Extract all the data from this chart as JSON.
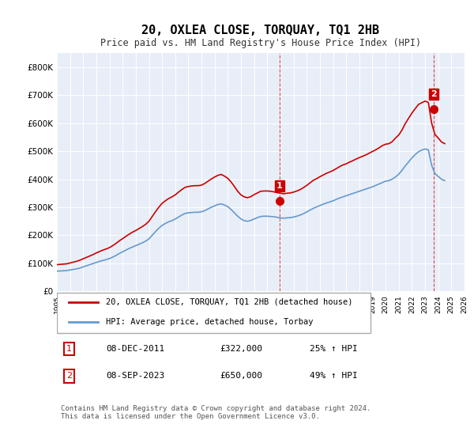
{
  "title": "20, OXLEA CLOSE, TORQUAY, TQ1 2HB",
  "subtitle": "Price paid vs. HM Land Registry's House Price Index (HPI)",
  "ylabel": "",
  "ylim": [
    0,
    850000
  ],
  "yticks": [
    0,
    100000,
    200000,
    300000,
    400000,
    500000,
    600000,
    700000,
    800000
  ],
  "ytick_labels": [
    "£0",
    "£100K",
    "£200K",
    "£300K",
    "£400K",
    "£500K",
    "£600K",
    "£700K",
    "£800K"
  ],
  "background_color": "#f0f4ff",
  "plot_bg": "#e8eef8",
  "red_color": "#cc0000",
  "blue_color": "#6699cc",
  "transaction1": {
    "date": 2011.92,
    "price": 322000,
    "label": "1"
  },
  "transaction2": {
    "date": 2023.67,
    "price": 650000,
    "label": "2"
  },
  "legend_red": "20, OXLEA CLOSE, TORQUAY, TQ1 2HB (detached house)",
  "legend_blue": "HPI: Average price, detached house, Torbay",
  "table_row1": [
    "1",
    "08-DEC-2011",
    "£322,000",
    "25% ↑ HPI"
  ],
  "table_row2": [
    "2",
    "08-SEP-2023",
    "£650,000",
    "49% ↑ HPI"
  ],
  "footer": "Contains HM Land Registry data © Crown copyright and database right 2024.\nThis data is licensed under the Open Government Licence v3.0.",
  "hpi_dates": [
    1995.0,
    1995.25,
    1995.5,
    1995.75,
    1996.0,
    1996.25,
    1996.5,
    1996.75,
    1997.0,
    1997.25,
    1997.5,
    1997.75,
    1998.0,
    1998.25,
    1998.5,
    1998.75,
    1999.0,
    1999.25,
    1999.5,
    1999.75,
    2000.0,
    2000.25,
    2000.5,
    2000.75,
    2001.0,
    2001.25,
    2001.5,
    2001.75,
    2002.0,
    2002.25,
    2002.5,
    2002.75,
    2003.0,
    2003.25,
    2003.5,
    2003.75,
    2004.0,
    2004.25,
    2004.5,
    2004.75,
    2005.0,
    2005.25,
    2005.5,
    2005.75,
    2006.0,
    2006.25,
    2006.5,
    2006.75,
    2007.0,
    2007.25,
    2007.5,
    2007.75,
    2008.0,
    2008.25,
    2008.5,
    2008.75,
    2009.0,
    2009.25,
    2009.5,
    2009.75,
    2010.0,
    2010.25,
    2010.5,
    2010.75,
    2011.0,
    2011.25,
    2011.5,
    2011.75,
    2012.0,
    2012.25,
    2012.5,
    2012.75,
    2013.0,
    2013.25,
    2013.5,
    2013.75,
    2014.0,
    2014.25,
    2014.5,
    2014.75,
    2015.0,
    2015.25,
    2015.5,
    2015.75,
    2016.0,
    2016.25,
    2016.5,
    2016.75,
    2017.0,
    2017.25,
    2017.5,
    2017.75,
    2018.0,
    2018.25,
    2018.5,
    2018.75,
    2019.0,
    2019.25,
    2019.5,
    2019.75,
    2020.0,
    2020.25,
    2020.5,
    2020.75,
    2021.0,
    2021.25,
    2021.5,
    2021.75,
    2022.0,
    2022.25,
    2022.5,
    2022.75,
    2023.0,
    2023.25,
    2023.5,
    2023.75,
    2024.0,
    2024.25,
    2024.5
  ],
  "hpi_values": [
    72000,
    72500,
    73000,
    74000,
    76000,
    78000,
    80000,
    83000,
    87000,
    91000,
    95000,
    99000,
    103000,
    107000,
    110000,
    113000,
    117000,
    122000,
    128000,
    135000,
    141000,
    147000,
    153000,
    158000,
    163000,
    168000,
    173000,
    179000,
    187000,
    200000,
    213000,
    225000,
    235000,
    242000,
    248000,
    252000,
    258000,
    265000,
    272000,
    278000,
    280000,
    281000,
    282000,
    282000,
    284000,
    288000,
    294000,
    300000,
    305000,
    310000,
    312000,
    308000,
    302000,
    292000,
    280000,
    268000,
    258000,
    252000,
    250000,
    253000,
    258000,
    263000,
    267000,
    268000,
    268000,
    267000,
    266000,
    264000,
    262000,
    261000,
    262000,
    263000,
    265000,
    268000,
    272000,
    277000,
    283000,
    290000,
    296000,
    301000,
    306000,
    311000,
    315000,
    319000,
    323000,
    328000,
    333000,
    337000,
    341000,
    345000,
    349000,
    353000,
    357000,
    361000,
    365000,
    369000,
    373000,
    378000,
    383000,
    388000,
    393000,
    395000,
    400000,
    408000,
    418000,
    432000,
    448000,
    462000,
    476000,
    488000,
    498000,
    504000,
    508000,
    505000,
    450000,
    420000,
    410000,
    400000,
    395000
  ],
  "red_dates": [
    1995.0,
    1995.25,
    1995.5,
    1995.75,
    1996.0,
    1996.25,
    1996.5,
    1996.75,
    1997.0,
    1997.25,
    1997.5,
    1997.75,
    1998.0,
    1998.25,
    1998.5,
    1998.75,
    1999.0,
    1999.25,
    1999.5,
    1999.75,
    2000.0,
    2000.25,
    2000.5,
    2000.75,
    2001.0,
    2001.25,
    2001.5,
    2001.75,
    2002.0,
    2002.25,
    2002.5,
    2002.75,
    2003.0,
    2003.25,
    2003.5,
    2003.75,
    2004.0,
    2004.25,
    2004.5,
    2004.75,
    2005.0,
    2005.25,
    2005.5,
    2005.75,
    2006.0,
    2006.25,
    2006.5,
    2006.75,
    2007.0,
    2007.25,
    2007.5,
    2007.75,
    2008.0,
    2008.25,
    2008.5,
    2008.75,
    2009.0,
    2009.25,
    2009.5,
    2009.75,
    2010.0,
    2010.25,
    2010.5,
    2010.75,
    2011.0,
    2011.25,
    2011.5,
    2011.75,
    2012.0,
    2012.25,
    2012.5,
    2012.75,
    2013.0,
    2013.25,
    2013.5,
    2013.75,
    2014.0,
    2014.25,
    2014.5,
    2014.75,
    2015.0,
    2015.25,
    2015.5,
    2015.75,
    2016.0,
    2016.25,
    2016.5,
    2016.75,
    2017.0,
    2017.25,
    2017.5,
    2017.75,
    2018.0,
    2018.25,
    2018.5,
    2018.75,
    2019.0,
    2019.25,
    2019.5,
    2019.75,
    2020.0,
    2020.25,
    2020.5,
    2020.75,
    2021.0,
    2021.25,
    2021.5,
    2021.75,
    2022.0,
    2022.25,
    2022.5,
    2022.75,
    2023.0,
    2023.25,
    2023.5,
    2023.75,
    2024.0,
    2024.25,
    2024.5
  ],
  "red_values": [
    95000,
    96000,
    97000,
    98000,
    101000,
    104000,
    107000,
    111000,
    116000,
    121000,
    126000,
    131000,
    137000,
    142000,
    147000,
    151000,
    156000,
    163000,
    171000,
    180000,
    188000,
    196000,
    204000,
    211000,
    217000,
    224000,
    231000,
    239000,
    250000,
    267000,
    284000,
    300000,
    314000,
    323000,
    331000,
    337000,
    344000,
    354000,
    363000,
    371000,
    374000,
    376000,
    377000,
    377000,
    379000,
    385000,
    393000,
    401000,
    408000,
    414000,
    417000,
    411000,
    403000,
    390000,
    374000,
    357000,
    344000,
    337000,
    334000,
    338000,
    345000,
    351000,
    357000,
    358000,
    358000,
    357000,
    355000,
    352000,
    350000,
    348000,
    350000,
    351000,
    354000,
    358000,
    363000,
    370000,
    378000,
    387000,
    396000,
    402000,
    409000,
    415000,
    421000,
    426000,
    431000,
    438000,
    445000,
    451000,
    455000,
    461000,
    466000,
    472000,
    477000,
    482000,
    487000,
    493000,
    499000,
    505000,
    512000,
    520000,
    525000,
    527000,
    534000,
    547000,
    558000,
    576000,
    599000,
    618000,
    636000,
    652000,
    667000,
    673000,
    679000,
    674000,
    600000,
    560000,
    547000,
    533000,
    527000
  ]
}
